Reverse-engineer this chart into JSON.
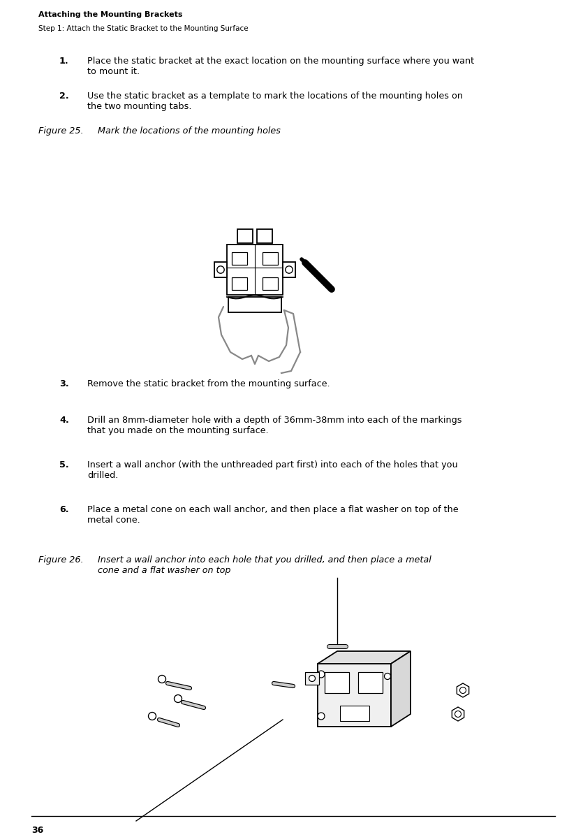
{
  "page_number": "36",
  "header_bold": "Attaching the Mounting Brackets",
  "header_sub": "Step 1: Attach the Static Bracket to the Mounting Surface",
  "items": [
    {
      "num": "1.",
      "text": "Place the static bracket at the exact location on the mounting surface where you want\nto mount it."
    },
    {
      "num": "2.",
      "text": "Use the static bracket as a template to mark the locations of the mounting holes on\nthe two mounting tabs."
    }
  ],
  "fig25_label": "Figure 25.",
  "fig25_caption": "    Mark the locations of the mounting holes",
  "items2": [
    {
      "num": "3.",
      "text": "Remove the static bracket from the mounting surface."
    },
    {
      "num": "4.",
      "text": "Drill an 8mm-diameter hole with a depth of 36mm-38mm into each of the markings\nthat you made on the mounting surface."
    },
    {
      "num": "5.",
      "text": "Insert a wall anchor (with the unthreaded part first) into each of the holes that you\ndrilled."
    },
    {
      "num": "6.",
      "text": "Place a metal cone on each wall anchor, and then place a flat washer on top of the\nmetal cone."
    }
  ],
  "fig26_label": "Figure 26.",
  "fig26_caption": "    Insert a wall anchor into each hole that you drilled, and then place a metal\n            cone and a flat washer on top",
  "bg_color": "#ffffff",
  "text_color": "#000000",
  "font_size_header_bold": 8.0,
  "font_size_header_sub": 7.5,
  "font_size_body": 9.2,
  "font_size_caption": 9.2,
  "font_size_page": 9.0
}
